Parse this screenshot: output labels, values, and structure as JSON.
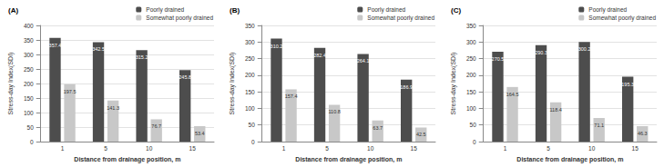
{
  "chart_data": [
    {
      "type": "bar",
      "title": "(A)",
      "categories": [
        "1",
        "5",
        "10",
        "15"
      ],
      "series": [
        {
          "name": "Poorly drained",
          "color": "#4d4d4d",
          "values": [
            357.4,
            342.5,
            315.2,
            245.8
          ]
        },
        {
          "name": "Somewhat poorly drained",
          "color": "#c8c8c8",
          "values": [
            197.5,
            141.3,
            76.7,
            53.4
          ]
        }
      ],
      "xlabel": "Distance from drainage position, m",
      "ylabel": "Stress-day Index(SDI)",
      "ylim": [
        0,
        400
      ],
      "yticks": [
        0,
        50,
        100,
        150,
        200,
        250,
        300,
        350,
        400
      ],
      "grid": true,
      "legend": "top-right",
      "data_labels": true
    },
    {
      "type": "bar",
      "title": "(B)",
      "categories": [
        "1",
        "5",
        "10",
        "15"
      ],
      "series": [
        {
          "name": "Poorly drained",
          "color": "#4d4d4d",
          "values": [
            310.2,
            282.4,
            264.1,
            186.9
          ]
        },
        {
          "name": "Somewhat poorly drained",
          "color": "#c8c8c8",
          "values": [
            157.4,
            110.8,
            63.7,
            42.5
          ]
        }
      ],
      "xlabel": "Distance from drainage position, m",
      "ylabel": "Stress-day Index(SDI)",
      "ylim": [
        0,
        350
      ],
      "yticks": [
        0,
        50,
        100,
        150,
        200,
        250,
        300,
        350
      ],
      "grid": true,
      "legend": "top-right",
      "data_labels": true
    },
    {
      "type": "bar",
      "title": "(C)",
      "categories": [
        "1",
        "5",
        "10",
        "15"
      ],
      "series": [
        {
          "name": "Poorly drained",
          "color": "#4d4d4d",
          "values": [
            270.5,
            290.3,
            300.2,
            195.3
          ]
        },
        {
          "name": "Somewhat poorly drained",
          "color": "#c8c8c8",
          "values": [
            164.5,
            118.4,
            71.1,
            46.3
          ]
        }
      ],
      "xlabel": "Distance from drainage position, m",
      "ylabel": "Stress-day Index(SDI)",
      "ylim": [
        0,
        350
      ],
      "yticks": [
        0,
        50,
        100,
        150,
        200,
        250,
        300,
        350
      ],
      "grid": true,
      "legend": "top-right",
      "data_labels": true
    }
  ]
}
